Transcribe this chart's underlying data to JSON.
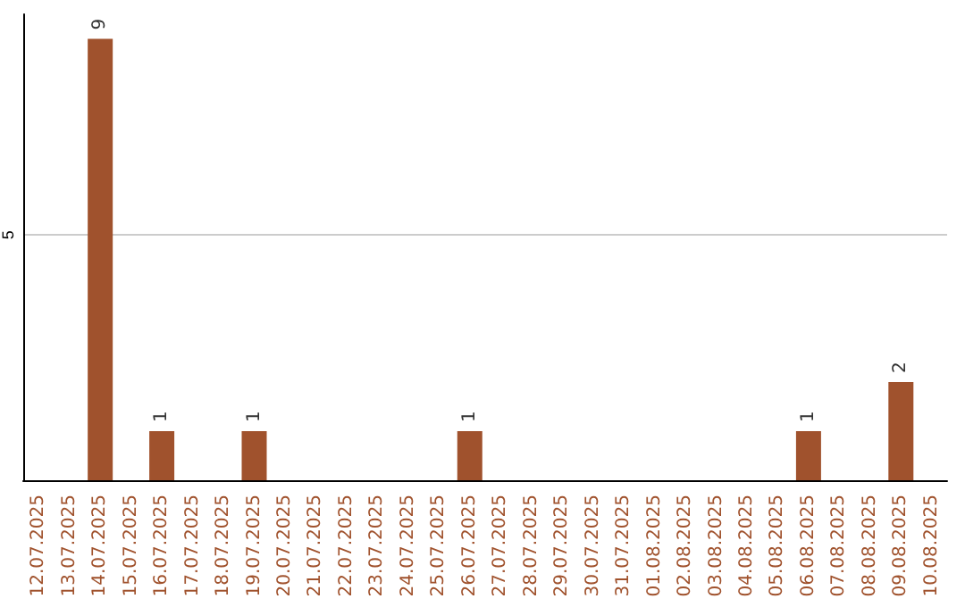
{
  "chart_data": {
    "type": "bar",
    "categories": [
      "12.07.2025",
      "13.07.2025",
      "14.07.2025",
      "15.07.2025",
      "16.07.2025",
      "17.07.2025",
      "18.07.2025",
      "19.07.2025",
      "20.07.2025",
      "21.07.2025",
      "22.07.2025",
      "23.07.2025",
      "24.07.2025",
      "25.07.2025",
      "26.07.2025",
      "27.07.2025",
      "28.07.2025",
      "29.07.2025",
      "30.07.2025",
      "31.07.2025",
      "01.08.2025",
      "02.08.2025",
      "03.08.2025",
      "04.08.2025",
      "05.08.2025",
      "06.08.2025",
      "07.08.2025",
      "08.08.2025",
      "09.08.2025",
      "10.08.2025"
    ],
    "values": [
      0,
      0,
      9,
      0,
      1,
      0,
      0,
      1,
      0,
      0,
      0,
      0,
      0,
      0,
      1,
      0,
      0,
      0,
      0,
      0,
      0,
      0,
      0,
      0,
      0,
      1,
      0,
      0,
      2,
      0
    ],
    "color": "#a0522d",
    "value_labels": [
      null,
      null,
      "9",
      null,
      "1",
      null,
      null,
      "1",
      null,
      null,
      null,
      null,
      null,
      null,
      "1",
      null,
      null,
      null,
      null,
      null,
      null,
      null,
      null,
      null,
      null,
      "1",
      null,
      null,
      "2",
      null
    ],
    "ylim": [
      0,
      9.5
    ],
    "yticks": [
      5
    ],
    "grid": "y"
  }
}
